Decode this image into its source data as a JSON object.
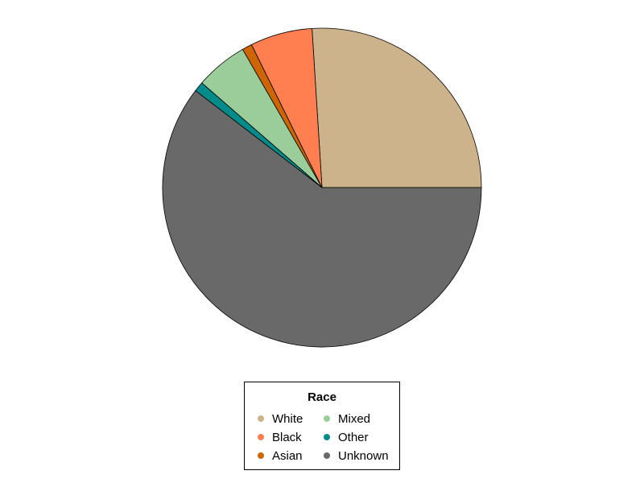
{
  "chart_data": {
    "type": "pie",
    "title": "",
    "categories": [
      "White",
      "Black",
      "Asian",
      "Mixed",
      "Other",
      "Unknown"
    ],
    "values": [
      26.0,
      6.3,
      1.0,
      5.3,
      1.0,
      60.4
    ],
    "unit": "percent",
    "start_angle_deg": 0,
    "direction": "counterclockwise",
    "colors": [
      "#CDB38B",
      "#FF7F50",
      "#CD6600",
      "#9BCD9B",
      "#008B8B",
      "#696969"
    ],
    "legend": {
      "title": "Race",
      "position": "bottom",
      "columns": 2,
      "entries": [
        "White",
        "Black",
        "Asian",
        "Mixed",
        "Other",
        "Unknown"
      ]
    }
  }
}
